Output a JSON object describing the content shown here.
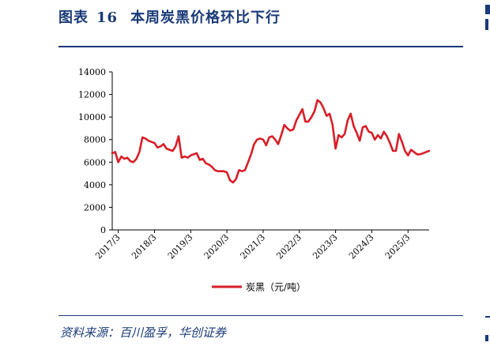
{
  "header": {
    "figure_label": "图表",
    "figure_number": "16",
    "title": "本周炭黑价格环比下行"
  },
  "footer": {
    "source": "资料来源：百川盈孚，华创证券"
  },
  "colors": {
    "series": "#d81e27",
    "accent": "#1a3a78",
    "axis": "#000000"
  },
  "chart_data": {
    "type": "line",
    "title": "",
    "xlabel": "",
    "ylabel": "",
    "ylim": [
      0,
      14000
    ],
    "yticks": [
      0,
      2000,
      4000,
      6000,
      8000,
      10000,
      12000,
      14000
    ],
    "xticks": [
      "2017/3",
      "2018/3",
      "2019/3",
      "2020/3",
      "2021/3",
      "2022/3",
      "2023/3",
      "2024/3",
      "2025/3"
    ],
    "x_range": [
      "2017-01",
      "2025-10"
    ],
    "grid": false,
    "legend_position": "bottom",
    "series": [
      {
        "name": "炭黑（元/吨）",
        "color": "#d81e27",
        "points": [
          [
            "2017-01",
            6800
          ],
          [
            "2017-02",
            6900
          ],
          [
            "2017-03",
            6000
          ],
          [
            "2017-04",
            6500
          ],
          [
            "2017-05",
            6300
          ],
          [
            "2017-06",
            6400
          ],
          [
            "2017-07",
            6100
          ],
          [
            "2017-08",
            6000
          ],
          [
            "2017-09",
            6300
          ],
          [
            "2017-10",
            6900
          ],
          [
            "2017-11",
            8200
          ],
          [
            "2017-12",
            8100
          ],
          [
            "2018-01",
            7900
          ],
          [
            "2018-02",
            7800
          ],
          [
            "2018-03",
            7700
          ],
          [
            "2018-04",
            7300
          ],
          [
            "2018-05",
            7400
          ],
          [
            "2018-06",
            7600
          ],
          [
            "2018-07",
            7200
          ],
          [
            "2018-08",
            7100
          ],
          [
            "2018-09",
            7000
          ],
          [
            "2018-10",
            7400
          ],
          [
            "2018-11",
            8300
          ],
          [
            "2018-12",
            6400
          ],
          [
            "2019-01",
            6500
          ],
          [
            "2019-02",
            6400
          ],
          [
            "2019-03",
            6600
          ],
          [
            "2019-04",
            6700
          ],
          [
            "2019-05",
            6800
          ],
          [
            "2019-06",
            6200
          ],
          [
            "2019-07",
            6300
          ],
          [
            "2019-08",
            5900
          ],
          [
            "2019-09",
            5800
          ],
          [
            "2019-10",
            5600
          ],
          [
            "2019-11",
            5300
          ],
          [
            "2019-12",
            5200
          ],
          [
            "2020-01",
            5200
          ],
          [
            "2020-02",
            5200
          ],
          [
            "2020-03",
            5100
          ],
          [
            "2020-04",
            4400
          ],
          [
            "2020-05",
            4200
          ],
          [
            "2020-06",
            4500
          ],
          [
            "2020-07",
            5300
          ],
          [
            "2020-08",
            5200
          ],
          [
            "2020-09",
            5300
          ],
          [
            "2020-10",
            6000
          ],
          [
            "2020-11",
            6700
          ],
          [
            "2020-12",
            7600
          ],
          [
            "2021-01",
            8000
          ],
          [
            "2021-02",
            8100
          ],
          [
            "2021-03",
            8000
          ],
          [
            "2021-04",
            7500
          ],
          [
            "2021-05",
            8200
          ],
          [
            "2021-06",
            8300
          ],
          [
            "2021-07",
            8000
          ],
          [
            "2021-08",
            7600
          ],
          [
            "2021-09",
            8400
          ],
          [
            "2021-10",
            9300
          ],
          [
            "2021-11",
            9000
          ],
          [
            "2021-12",
            8800
          ],
          [
            "2022-01",
            8900
          ],
          [
            "2022-02",
            9700
          ],
          [
            "2022-03",
            10200
          ],
          [
            "2022-04",
            10700
          ],
          [
            "2022-05",
            9600
          ],
          [
            "2022-06",
            9600
          ],
          [
            "2022-07",
            10000
          ],
          [
            "2022-08",
            10500
          ],
          [
            "2022-09",
            11500
          ],
          [
            "2022-10",
            11300
          ],
          [
            "2022-11",
            10800
          ],
          [
            "2022-12",
            10100
          ],
          [
            "2023-01",
            10300
          ],
          [
            "2023-02",
            9300
          ],
          [
            "2023-03",
            7200
          ],
          [
            "2023-04",
            8400
          ],
          [
            "2023-05",
            8200
          ],
          [
            "2023-06",
            8500
          ],
          [
            "2023-07",
            9700
          ],
          [
            "2023-08",
            10300
          ],
          [
            "2023-09",
            9200
          ],
          [
            "2023-10",
            8600
          ],
          [
            "2023-11",
            7900
          ],
          [
            "2023-12",
            9100
          ],
          [
            "2024-01",
            9200
          ],
          [
            "2024-02",
            8700
          ],
          [
            "2024-03",
            8600
          ],
          [
            "2024-04",
            8000
          ],
          [
            "2024-05",
            8400
          ],
          [
            "2024-06",
            8100
          ],
          [
            "2024-07",
            8700
          ],
          [
            "2024-08",
            8300
          ],
          [
            "2024-09",
            7700
          ],
          [
            "2024-10",
            7000
          ],
          [
            "2024-11",
            7000
          ],
          [
            "2024-12",
            8500
          ],
          [
            "2025-01",
            7800
          ],
          [
            "2025-02",
            7000
          ],
          [
            "2025-03",
            6600
          ],
          [
            "2025-04",
            7100
          ],
          [
            "2025-05",
            6900
          ],
          [
            "2025-06",
            6700
          ],
          [
            "2025-07",
            6700
          ],
          [
            "2025-08",
            6800
          ],
          [
            "2025-09",
            6900
          ],
          [
            "2025-10",
            7000
          ]
        ]
      }
    ]
  }
}
